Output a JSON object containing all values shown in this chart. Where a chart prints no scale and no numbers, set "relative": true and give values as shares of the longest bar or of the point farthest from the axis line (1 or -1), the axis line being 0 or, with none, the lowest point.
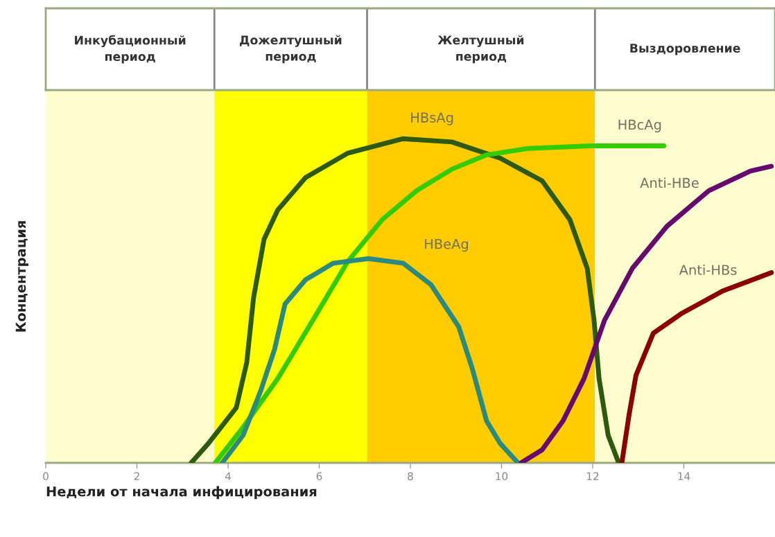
{
  "chart_data": {
    "type": "line",
    "relative": true,
    "xlabel": "Недели от начала инфицирования",
    "ylabel": "Концентрация",
    "xlim": [
      0,
      16
    ],
    "xticks": [
      0,
      2,
      4,
      6,
      8,
      10,
      12,
      14
    ],
    "grid": false,
    "legend": false,
    "marker": "none",
    "line_style": "solid",
    "tick_labels": "x",
    "bands": [
      {
        "axis": "x",
        "from": 0,
        "to": 3.7,
        "label": "Инкубационный период",
        "color": "#fffdd0"
      },
      {
        "axis": "x",
        "from": 3.7,
        "to": 7.05,
        "label": "Дожелтушный период",
        "color": "#ffff00"
      },
      {
        "axis": "x",
        "from": 7.05,
        "to": 12.05,
        "label": "Желтушный период",
        "color": "#ffcc00"
      },
      {
        "axis": "x",
        "from": 12.05,
        "to": 16,
        "label": "Выздоровление",
        "color": "#fffdd0"
      }
    ],
    "series": [
      {
        "name": "HBsAg",
        "color": "#2d5a0e",
        "x": [
          3.19,
          3.57,
          4.18,
          4.41,
          4.56,
          4.79,
          5.09,
          5.7,
          6.62,
          7.84,
          8.91,
          9.97,
          10.89,
          11.5,
          11.88,
          12.03,
          12.14,
          12.34,
          12.57
        ],
        "values": [
          0,
          0.06,
          0.17,
          0.31,
          0.51,
          0.69,
          0.78,
          0.88,
          0.955,
          1.0,
          0.99,
          0.94,
          0.87,
          0.75,
          0.6,
          0.44,
          0.26,
          0.085,
          0
        ]
      },
      {
        "name": "HBcAg",
        "color": "#33cc00",
        "x": [
          3.72,
          4.33,
          5.09,
          5.86,
          6.62,
          7.38,
          8.14,
          8.91,
          9.67,
          10.58,
          11.96,
          13.56
        ],
        "values": [
          0,
          0.11,
          0.26,
          0.44,
          0.62,
          0.75,
          0.84,
          0.906,
          0.95,
          0.97,
          0.978,
          0.978
        ]
      },
      {
        "name": "HBeAg",
        "color": "#2a8a80",
        "x": [
          3.87,
          4.33,
          4.71,
          5.02,
          5.25,
          5.7,
          6.31,
          7.08,
          7.84,
          8.45,
          9.06,
          9.36,
          9.67,
          9.97,
          10.36
        ],
        "values": [
          0,
          0.085,
          0.22,
          0.35,
          0.49,
          0.565,
          0.616,
          0.63,
          0.616,
          0.55,
          0.42,
          0.29,
          0.13,
          0.06,
          0
        ]
      },
      {
        "name": "Anti-HBe",
        "color": "#650a6e",
        "x": [
          10.43,
          10.89,
          11.35,
          11.81,
          12.26,
          12.87,
          13.63,
          14.55,
          15.46,
          15.92
        ],
        "values": [
          0,
          0.04,
          0.13,
          0.26,
          0.44,
          0.6,
          0.73,
          0.84,
          0.9,
          0.915
        ]
      },
      {
        "name": "Anti-HBs",
        "color": "#8b0000",
        "x": [
          12.64,
          12.8,
          12.95,
          13.33,
          13.94,
          14.85,
          15.92
        ],
        "values": [
          0,
          0.15,
          0.27,
          0.4,
          0.46,
          0.53,
          0.587
        ]
      }
    ]
  }
}
